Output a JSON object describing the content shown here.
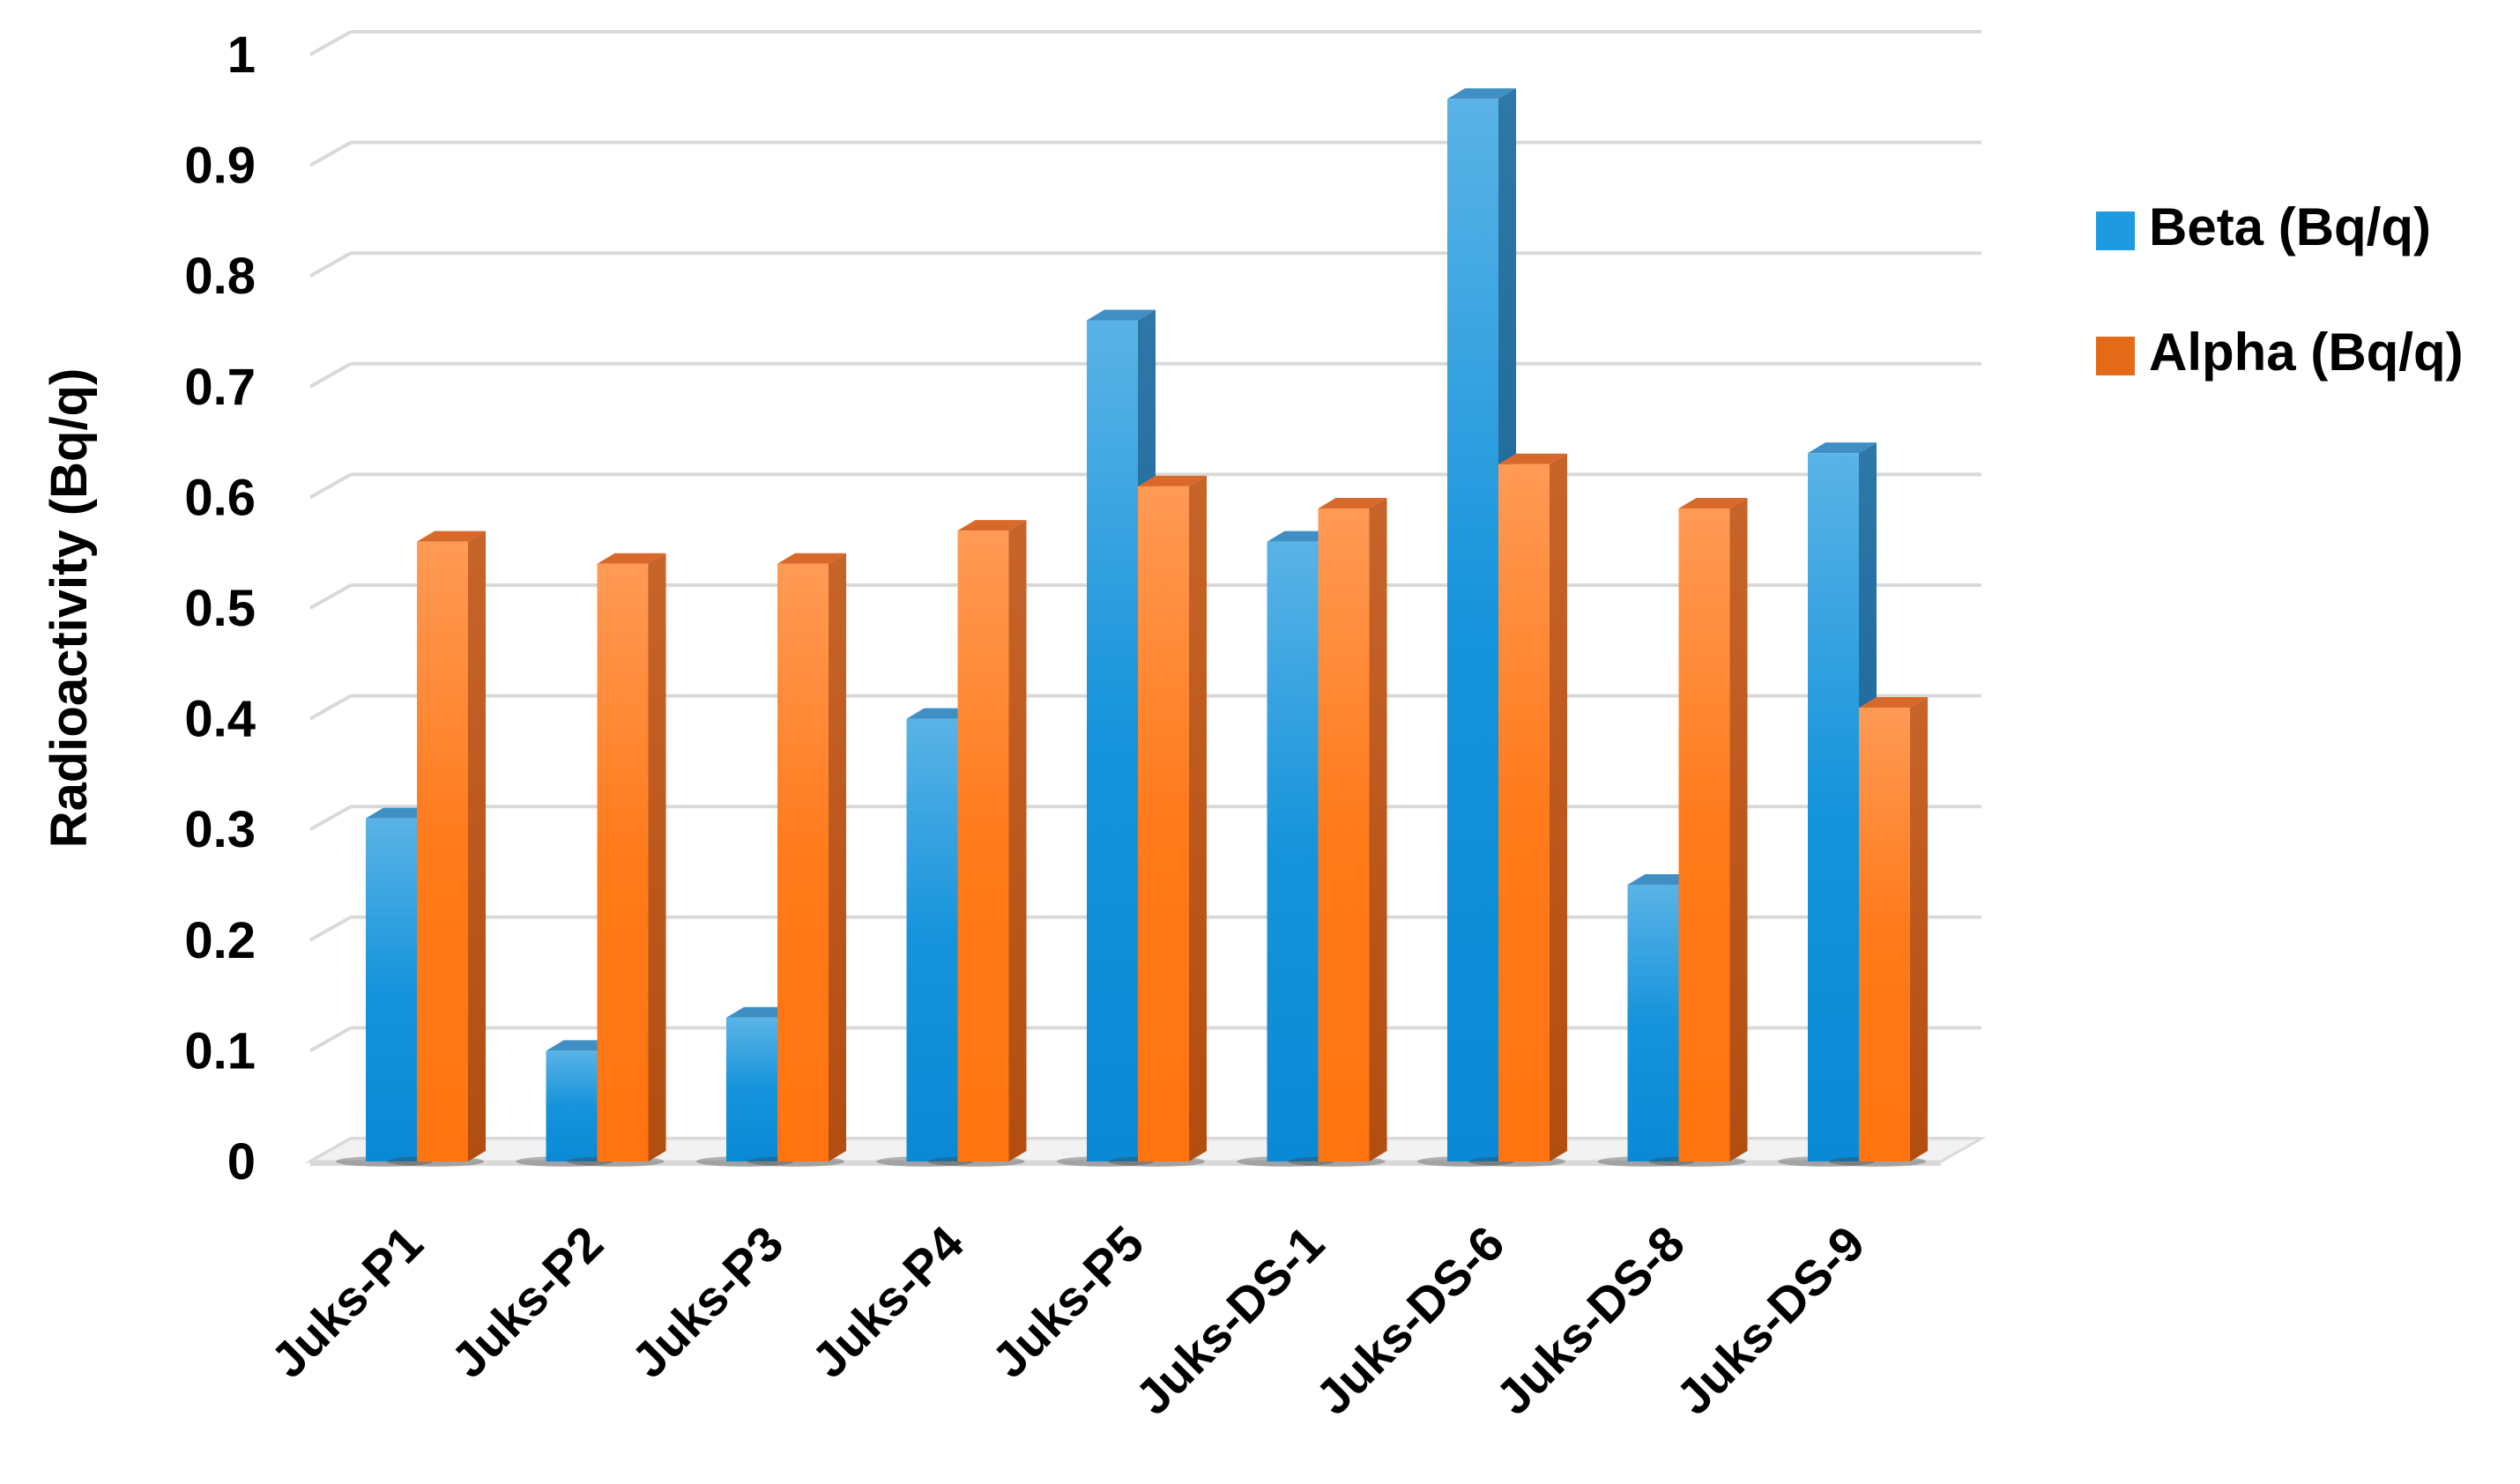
{
  "chart_data": {
    "type": "bar",
    "style": "3d-clustered-column",
    "categories": [
      "Juks-P1",
      "Juks-P2",
      "Juks-P3",
      "Juks-P4",
      "Juks-P5",
      "Juks-DS-1",
      "Juks-DS-6",
      "Juks-DS-8",
      "Juks-DS-9"
    ],
    "series": [
      {
        "name": "Beta (Bq/q)",
        "values": [
          0.31,
          0.1,
          0.13,
          0.4,
          0.76,
          0.56,
          0.96,
          0.25,
          0.64
        ],
        "color": "#1E9BE0"
      },
      {
        "name": "Alpha (Bq/q)",
        "values": [
          0.56,
          0.54,
          0.54,
          0.57,
          0.61,
          0.59,
          0.63,
          0.59,
          0.41
        ],
        "color": "#FF7F1E"
      }
    ],
    "title": "",
    "xlabel": "",
    "ylabel": "Radioactivity (Bq/q)",
    "ylim": [
      0,
      1
    ],
    "yticks": [
      "0",
      "0.1",
      "0.2",
      "0.3",
      "0.4",
      "0.5",
      "0.6",
      "0.7",
      "0.8",
      "0.9",
      "1"
    ],
    "grid": true,
    "legend_position": "right"
  }
}
